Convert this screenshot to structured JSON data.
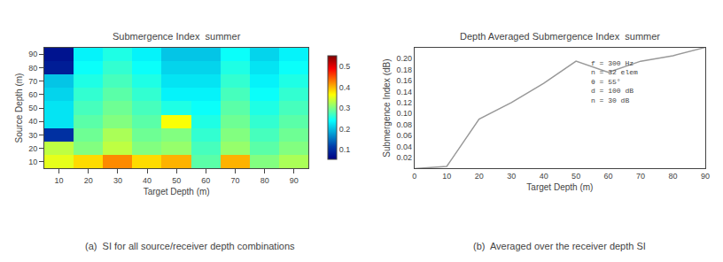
{
  "chart_data": [
    {
      "type": "heatmap",
      "title": "Submergence Index  summer",
      "x_label": "Target Depth (m)",
      "y_label": "Source Depth (m)",
      "caption": "(a)  SI for all source/receiver depth combinations",
      "x": [
        10,
        20,
        30,
        40,
        50,
        60,
        70,
        80,
        90
      ],
      "y": [
        10,
        20,
        30,
        40,
        50,
        60,
        70,
        80,
        90
      ],
      "values": [
        [
          0.35,
          0.38,
          0.42,
          0.38,
          0.4,
          0.28,
          0.4,
          0.3,
          0.32
        ],
        [
          0.33,
          0.3,
          0.33,
          0.3,
          0.31,
          0.27,
          0.31,
          0.28,
          0.3
        ],
        [
          0.1,
          0.29,
          0.32,
          0.29,
          0.3,
          0.26,
          0.3,
          0.27,
          0.29
        ],
        [
          0.22,
          0.28,
          0.3,
          0.28,
          0.36,
          0.25,
          0.29,
          0.26,
          0.28
        ],
        [
          0.22,
          0.27,
          0.29,
          0.27,
          0.25,
          0.24,
          0.28,
          0.25,
          0.27
        ],
        [
          0.21,
          0.26,
          0.28,
          0.26,
          0.23,
          0.23,
          0.27,
          0.24,
          0.26
        ],
        [
          0.2,
          0.25,
          0.27,
          0.25,
          0.22,
          0.22,
          0.26,
          0.23,
          0.25
        ],
        [
          0.08,
          0.24,
          0.26,
          0.24,
          0.21,
          0.21,
          0.25,
          0.22,
          0.24
        ],
        [
          0.07,
          0.23,
          0.25,
          0.23,
          0.2,
          0.2,
          0.24,
          0.21,
          0.23
        ]
      ],
      "color": "jet",
      "colorbar_range": [
        0.05,
        0.55
      ],
      "colorbar_ticks": [
        0.1,
        0.2,
        0.3,
        0.4,
        0.5
      ],
      "xlim": [
        5,
        95
      ],
      "ylim": [
        5,
        95
      ],
      "xticks": [
        10,
        20,
        30,
        40,
        50,
        60,
        70,
        80,
        90
      ],
      "yticks": [
        10,
        20,
        30,
        40,
        50,
        60,
        70,
        80,
        90
      ],
      "grid": false
    },
    {
      "type": "line",
      "title": "Depth Averaged Submergence Index  summer",
      "x_label": "Target Depth (m)",
      "y_label": "Submergence Index (dB)",
      "caption": "(b)  Averaged over the receiver depth SI",
      "x": [
        0,
        10,
        20,
        30,
        40,
        50,
        60,
        70,
        80,
        90
      ],
      "values": [
        0.0,
        0.004,
        0.09,
        0.12,
        0.155,
        0.195,
        0.175,
        0.195,
        0.205,
        0.22
      ],
      "color": "#999999",
      "xlim": [
        0,
        90
      ],
      "ylim": [
        0,
        0.22
      ],
      "xticks": [
        0,
        10,
        20,
        30,
        40,
        50,
        60,
        70,
        80,
        90
      ],
      "yticks": [
        0.02,
        0.04,
        0.06,
        0.08,
        {
          "value": 0.1,
          "label": "0.10"
        },
        0.12,
        0.14,
        0.16,
        0.18,
        {
          "value": 0.2,
          "label": "0.20"
        }
      ],
      "annotations": [
        "f = 300 Hz",
        "n = 32 elem",
        "θ = 55°",
        "d = 100 dB",
        "n = 30 dB"
      ],
      "grid": false
    }
  ]
}
